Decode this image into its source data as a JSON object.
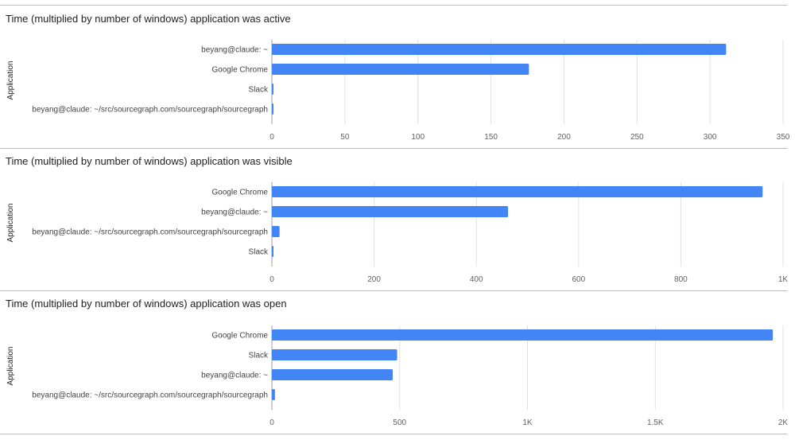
{
  "colors": {
    "bar": "#4285f4",
    "grid": "#e0e0e0",
    "axis": "#9e9e9e"
  },
  "chart_data": [
    {
      "type": "bar",
      "orientation": "horizontal",
      "title": "Time (multiplied by number of windows) application was active",
      "ylabel": "Application",
      "xlabel": "",
      "categories": [
        "beyang@claude: ~",
        "Google Chrome",
        "Slack",
        "beyang@claude: ~/src/sourcegraph.com/sourcegraph/sourcegraph"
      ],
      "values": [
        311,
        176,
        1,
        1
      ],
      "xlim": [
        0,
        350
      ],
      "xticks": [
        0,
        50,
        100,
        150,
        200,
        250,
        300,
        350
      ],
      "xtick_labels": [
        "0",
        "50",
        "100",
        "150",
        "200",
        "250",
        "300",
        "350"
      ],
      "grid": true
    },
    {
      "type": "bar",
      "orientation": "horizontal",
      "title": "Time (multiplied by number of windows) application was visible",
      "ylabel": "Application",
      "xlabel": "",
      "categories": [
        "Google Chrome",
        "beyang@claude: ~",
        "beyang@claude: ~/src/sourcegraph.com/sourcegraph/sourcegraph",
        "Slack"
      ],
      "values": [
        960,
        462,
        15,
        2
      ],
      "xlim": [
        0,
        1000
      ],
      "xticks": [
        0,
        200,
        400,
        600,
        800,
        1000
      ],
      "xtick_labels": [
        "0",
        "200",
        "400",
        "600",
        "800",
        "1K"
      ],
      "grid": true
    },
    {
      "type": "bar",
      "orientation": "horizontal",
      "title": "Time (multiplied by number of windows) application was open",
      "ylabel": "Application",
      "xlabel": "",
      "categories": [
        "Google Chrome",
        "Slack",
        "beyang@claude: ~",
        "beyang@claude: ~/src/sourcegraph.com/sourcegraph/sourcegraph"
      ],
      "values": [
        1960,
        490,
        473,
        12
      ],
      "xlim": [
        0,
        2000
      ],
      "xticks": [
        0,
        500,
        1000,
        1500,
        2000
      ],
      "xtick_labels": [
        "0",
        "500",
        "1K",
        "1.5K",
        "2K"
      ],
      "grid": true
    }
  ]
}
